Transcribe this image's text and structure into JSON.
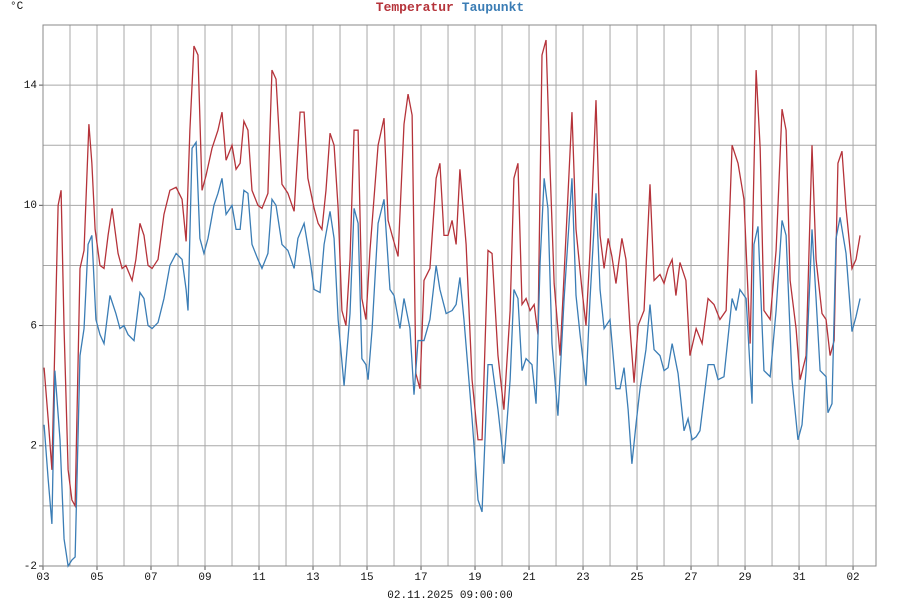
{
  "chart_data": {
    "type": "line",
    "ylabel": "°C",
    "xlabel": "02.11.2025 09:00:00",
    "xlim": [
      0,
      30.85
    ],
    "ylim": [
      -2,
      16
    ],
    "yticks": [
      -2,
      2,
      6,
      10,
      14
    ],
    "yminor": [
      0,
      4,
      8,
      12,
      16
    ],
    "xticks": [
      {
        "value": 0,
        "label": "03"
      },
      {
        "value": 2,
        "label": "05"
      },
      {
        "value": 4,
        "label": "07"
      },
      {
        "value": 6,
        "label": "09"
      },
      {
        "value": 8,
        "label": "11"
      },
      {
        "value": 10,
        "label": "13"
      },
      {
        "value": 12,
        "label": "15"
      },
      {
        "value": 14,
        "label": "17"
      },
      {
        "value": 16,
        "label": "19"
      },
      {
        "value": 18,
        "label": "21"
      },
      {
        "value": 20,
        "label": "23"
      },
      {
        "value": 22,
        "label": "25"
      },
      {
        "value": 24,
        "label": "27"
      },
      {
        "value": 26,
        "label": "29"
      },
      {
        "value": 28,
        "label": "31"
      },
      {
        "value": 30,
        "label": "02"
      }
    ],
    "xminor": [
      1,
      3,
      5,
      7,
      9,
      11,
      13,
      15,
      17,
      19,
      21,
      23,
      25,
      27,
      29
    ],
    "grid": true,
    "series": [
      {
        "name": "Temperatur",
        "color": "#b5333a",
        "x": [
          0.04,
          0.19,
          0.33,
          0.56,
          0.67,
          0.78,
          0.93,
          1.07,
          1.19,
          1.37,
          1.52,
          1.7,
          1.81,
          1.93,
          2.11,
          2.26,
          2.41,
          2.56,
          2.78,
          2.93,
          3.07,
          3.3,
          3.44,
          3.59,
          3.74,
          3.89,
          4.04,
          4.26,
          4.48,
          4.7,
          4.93,
          5.15,
          5.3,
          5.44,
          5.59,
          5.74,
          5.89,
          6.04,
          6.26,
          6.48,
          6.63,
          6.78,
          7.0,
          7.15,
          7.3,
          7.44,
          7.59,
          7.74,
          7.96,
          8.11,
          8.33,
          8.48,
          8.63,
          8.85,
          9.07,
          9.3,
          9.52,
          9.67,
          9.81,
          10.04,
          10.19,
          10.33,
          10.48,
          10.63,
          10.78,
          10.93,
          11.07,
          11.22,
          11.37,
          11.52,
          11.67,
          11.81,
          11.96,
          12.11,
          12.41,
          12.63,
          12.78,
          12.93,
          13.15,
          13.37,
          13.52,
          13.67,
          13.81,
          13.96,
          14.11,
          14.33,
          14.56,
          14.7,
          14.85,
          15.0,
          15.15,
          15.3,
          15.44,
          15.67,
          15.89,
          16.11,
          16.26,
          16.48,
          16.63,
          16.85,
          17.07,
          17.3,
          17.44,
          17.59,
          17.74,
          17.89,
          18.04,
          18.19,
          18.33,
          18.48,
          18.63,
          18.78,
          18.93,
          19.15,
          19.37,
          19.59,
          19.74,
          19.96,
          20.11,
          20.26,
          20.48,
          20.63,
          20.78,
          20.93,
          21.07,
          21.22,
          21.44,
          21.59,
          21.74,
          21.89,
          22.04,
          22.26,
          22.48,
          22.63,
          22.85,
          23.0,
          23.15,
          23.3,
          23.44,
          23.59,
          23.81,
          23.96,
          24.19,
          24.41,
          24.63,
          24.85,
          25.07,
          25.3,
          25.52,
          25.74,
          25.96,
          26.19,
          26.41,
          26.56,
          26.7,
          26.93,
          27.15,
          27.37,
          27.52,
          27.67,
          27.89,
          28.04,
          28.26,
          28.48,
          28.63,
          28.85,
          29.0,
          29.15,
          29.3,
          29.44,
          29.59,
          29.74,
          29.96,
          30.11,
          30.26
        ],
        "values": [
          4.6,
          2.9,
          1.2,
          10.0,
          10.5,
          5.9,
          1.2,
          0.2,
          0.0,
          7.9,
          8.5,
          12.7,
          11.4,
          9.2,
          8.0,
          7.9,
          9.0,
          9.9,
          8.4,
          7.9,
          8.0,
          7.5,
          8.2,
          9.4,
          9.0,
          8.0,
          7.9,
          8.2,
          9.7,
          10.5,
          10.6,
          10.2,
          8.8,
          12.5,
          15.3,
          15.0,
          10.5,
          11.0,
          11.9,
          12.5,
          13.1,
          11.5,
          12.0,
          11.2,
          11.4,
          12.8,
          12.5,
          10.5,
          10.0,
          9.9,
          10.4,
          14.5,
          14.2,
          10.7,
          10.4,
          9.8,
          13.1,
          13.1,
          10.9,
          9.9,
          9.4,
          9.2,
          10.5,
          12.4,
          12.0,
          9.9,
          6.5,
          6.0,
          8.2,
          12.5,
          12.5,
          6.9,
          6.2,
          8.5,
          12.0,
          12.9,
          9.5,
          9.0,
          8.3,
          12.7,
          13.7,
          13.0,
          4.4,
          3.9,
          7.5,
          7.9,
          10.9,
          11.4,
          9.0,
          9.0,
          9.5,
          8.7,
          11.2,
          8.7,
          4.2,
          2.2,
          2.2,
          8.5,
          8.4,
          5.0,
          3.2,
          6.5,
          10.9,
          11.4,
          6.7,
          6.9,
          6.5,
          6.7,
          5.7,
          15.0,
          15.5,
          11.2,
          7.4,
          5.0,
          9.0,
          13.1,
          9.2,
          7.2,
          6.0,
          8.5,
          13.5,
          9.0,
          7.9,
          8.9,
          8.3,
          7.4,
          8.9,
          8.2,
          5.9,
          4.1,
          6.0,
          6.5,
          10.7,
          7.5,
          7.7,
          7.4,
          7.9,
          8.2,
          7.0,
          8.1,
          7.5,
          5.0,
          5.9,
          5.4,
          6.9,
          6.7,
          6.2,
          6.5,
          12.0,
          11.4,
          10.2,
          5.4,
          14.5,
          11.9,
          6.5,
          6.2,
          8.5,
          13.2,
          12.5,
          7.5,
          5.9,
          4.2,
          5.0,
          12.0,
          8.2,
          6.4,
          6.2,
          5.0,
          5.5,
          11.4,
          11.8,
          9.9,
          7.9,
          8.2,
          9.0
        ]
      },
      {
        "name": "Taupunkt",
        "color": "#3b7db5",
        "x": [
          0.04,
          0.19,
          0.33,
          0.44,
          0.63,
          0.78,
          0.93,
          1.07,
          1.19,
          1.37,
          1.52,
          1.67,
          1.81,
          1.96,
          2.11,
          2.26,
          2.48,
          2.7,
          2.85,
          3.0,
          3.15,
          3.37,
          3.59,
          3.74,
          3.89,
          4.04,
          4.26,
          4.48,
          4.7,
          4.93,
          5.15,
          5.3,
          5.37,
          5.52,
          5.67,
          5.81,
          5.96,
          6.11,
          6.33,
          6.48,
          6.63,
          6.78,
          7.0,
          7.15,
          7.3,
          7.44,
          7.59,
          7.74,
          7.96,
          8.11,
          8.33,
          8.48,
          8.63,
          8.85,
          9.07,
          9.3,
          9.44,
          9.67,
          9.89,
          10.04,
          10.26,
          10.41,
          10.63,
          10.78,
          10.93,
          11.15,
          11.37,
          11.52,
          11.67,
          11.81,
          11.96,
          12.04,
          12.19,
          12.41,
          12.63,
          12.85,
          13.0,
          13.22,
          13.37,
          13.59,
          13.74,
          13.89,
          14.11,
          14.33,
          14.56,
          14.7,
          14.93,
          15.15,
          15.3,
          15.44,
          15.59,
          15.89,
          16.11,
          16.26,
          16.48,
          16.63,
          16.85,
          17.07,
          17.3,
          17.44,
          17.59,
          17.74,
          17.89,
          18.11,
          18.26,
          18.41,
          18.56,
          18.7,
          18.85,
          19.07,
          19.3,
          19.59,
          19.74,
          19.89,
          20.11,
          20.26,
          20.48,
          20.63,
          20.78,
          21.0,
          21.22,
          21.37,
          21.52,
          21.67,
          21.81,
          21.96,
          22.11,
          22.33,
          22.48,
          22.63,
          22.85,
          23.0,
          23.15,
          23.3,
          23.52,
          23.74,
          23.89,
          24.04,
          24.19,
          24.33,
          24.63,
          24.85,
          25.0,
          25.22,
          25.52,
          25.67,
          25.81,
          26.04,
          26.26,
          26.33,
          26.48,
          26.7,
          26.93,
          27.15,
          27.37,
          27.52,
          27.74,
          27.96,
          28.11,
          28.26,
          28.48,
          28.63,
          28.78,
          29.0,
          29.07,
          29.22,
          29.37,
          29.52,
          29.74,
          29.96,
          30.11,
          30.26
        ],
        "values": [
          2.7,
          0.9,
          -0.6,
          4.5,
          2.2,
          -1.1,
          -2.0,
          -1.8,
          -1.7,
          5.0,
          5.9,
          8.7,
          9.0,
          6.2,
          5.7,
          5.4,
          7.0,
          6.4,
          5.9,
          6.0,
          5.7,
          5.5,
          7.1,
          6.9,
          6.0,
          5.9,
          6.1,
          6.9,
          8.0,
          8.4,
          8.2,
          7.2,
          6.5,
          11.9,
          12.1,
          8.9,
          8.4,
          8.9,
          10.0,
          10.4,
          10.9,
          9.7,
          10.0,
          9.2,
          9.2,
          10.5,
          10.4,
          8.7,
          8.2,
          7.9,
          8.4,
          10.2,
          10.0,
          8.7,
          8.5,
          7.9,
          8.9,
          9.4,
          8.2,
          7.2,
          7.1,
          8.7,
          9.8,
          8.9,
          6.2,
          4.0,
          6.4,
          9.9,
          9.4,
          4.9,
          4.7,
          4.2,
          5.9,
          9.4,
          10.2,
          7.2,
          7.0,
          5.9,
          6.9,
          5.9,
          3.7,
          5.5,
          5.5,
          6.2,
          8.0,
          7.2,
          6.4,
          6.5,
          6.7,
          7.6,
          6.2,
          2.9,
          0.2,
          -0.2,
          4.7,
          4.7,
          3.2,
          1.4,
          4.2,
          7.2,
          6.9,
          4.5,
          4.9,
          4.7,
          3.4,
          8.1,
          10.9,
          9.9,
          5.4,
          3.0,
          6.9,
          10.9,
          7.0,
          5.7,
          4.0,
          6.9,
          10.4,
          7.2,
          5.9,
          6.2,
          3.9,
          3.9,
          4.6,
          3.2,
          1.4,
          2.7,
          3.9,
          5.2,
          6.7,
          5.2,
          5.0,
          4.5,
          4.6,
          5.4,
          4.4,
          2.5,
          2.9,
          2.2,
          2.3,
          2.5,
          4.7,
          4.7,
          4.2,
          4.3,
          6.9,
          6.5,
          7.2,
          6.9,
          3.4,
          8.7,
          9.3,
          4.5,
          4.3,
          6.5,
          9.5,
          9.0,
          4.2,
          2.2,
          2.7,
          4.5,
          9.2,
          6.9,
          4.5,
          4.3,
          3.1,
          3.4,
          8.9,
          9.6,
          8.4,
          5.8,
          6.3,
          6.9
        ]
      }
    ]
  }
}
